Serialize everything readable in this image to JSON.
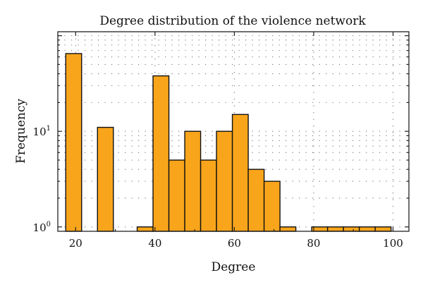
{
  "chart_data": {
    "type": "bar",
    "title": "Degree distribution of the violence network",
    "xlabel": "Degree",
    "ylabel": "Frequency",
    "xlim": [
      15.5,
      104
    ],
    "ylim": [
      0.9,
      110
    ],
    "yscale": "log",
    "bin_width": 4,
    "bar_color": "#f9a51b",
    "grid": true,
    "x_ticks": [
      {
        "value": 20,
        "label": "20"
      },
      {
        "value": 40,
        "label": "40"
      },
      {
        "value": 60,
        "label": "60"
      },
      {
        "value": 80,
        "label": "80"
      },
      {
        "value": 100,
        "label": "100"
      }
    ],
    "y_ticks": [
      {
        "value": 1,
        "base": "10",
        "exp": "0"
      },
      {
        "value": 10,
        "base": "10",
        "exp": "1"
      }
    ],
    "bins": [
      {
        "start": 17.5,
        "value": 65
      },
      {
        "start": 25.5,
        "value": 11
      },
      {
        "start": 35.5,
        "value": 1
      },
      {
        "start": 39.5,
        "value": 38
      },
      {
        "start": 43.5,
        "value": 5
      },
      {
        "start": 47.5,
        "value": 10
      },
      {
        "start": 51.5,
        "value": 5
      },
      {
        "start": 55.5,
        "value": 10
      },
      {
        "start": 59.5,
        "value": 15
      },
      {
        "start": 63.5,
        "value": 4
      },
      {
        "start": 67.5,
        "value": 3
      },
      {
        "start": 71.5,
        "value": 1
      },
      {
        "start": 79.5,
        "value": 1
      },
      {
        "start": 83.5,
        "value": 1
      },
      {
        "start": 87.5,
        "value": 1
      },
      {
        "start": 91.5,
        "value": 1
      },
      {
        "start": 95.5,
        "value": 1
      }
    ]
  }
}
